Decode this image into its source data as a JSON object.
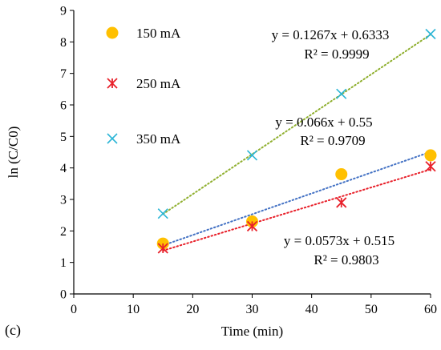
{
  "chart_data": {
    "type": "scatter",
    "panel_label": "(c)",
    "xlabel": "Time (min)",
    "ylabel": "ln (C/C0)",
    "xlim": [
      0,
      60
    ],
    "ylim": [
      0,
      9
    ],
    "xticks": [
      "0",
      "10",
      "20",
      "30",
      "40",
      "50",
      "60"
    ],
    "yticks": [
      "0",
      "1",
      "2",
      "3",
      "4",
      "5",
      "6",
      "7",
      "8",
      "9"
    ],
    "grid": false,
    "legend_position": "top-left",
    "series": [
      {
        "name": "150 mA",
        "marker": "circle",
        "color": "#FFC000",
        "trend_color": "#4472C4",
        "x": [
          15,
          30,
          45,
          60
        ],
        "y": [
          1.6,
          2.3,
          3.8,
          4.4
        ],
        "trendline": {
          "slope": 0.066,
          "intercept": 0.55,
          "equation": "y = 0.066x + 0.55",
          "r2": "R² = 0.9709"
        }
      },
      {
        "name": "250 mA",
        "marker": "asterisk",
        "color": "#E8202A",
        "trend_color": "#E8202A",
        "x": [
          15,
          30,
          45,
          60
        ],
        "y": [
          1.45,
          2.15,
          2.9,
          4.05
        ],
        "trendline": {
          "slope": 0.0573,
          "intercept": 0.515,
          "equation": "y = 0.0573x + 0.515",
          "r2": "R² = 0.9803"
        }
      },
      {
        "name": "350 mA",
        "marker": "x",
        "color": "#2BB5D6",
        "trend_color": "#8FAF2E",
        "x": [
          15,
          30,
          45,
          60
        ],
        "y": [
          2.55,
          4.4,
          6.35,
          8.25
        ],
        "trendline": {
          "slope": 0.1267,
          "intercept": 0.6333,
          "equation": "y = 0.1267x + 0.6333",
          "r2": "R² = 0.9999"
        }
      }
    ]
  }
}
